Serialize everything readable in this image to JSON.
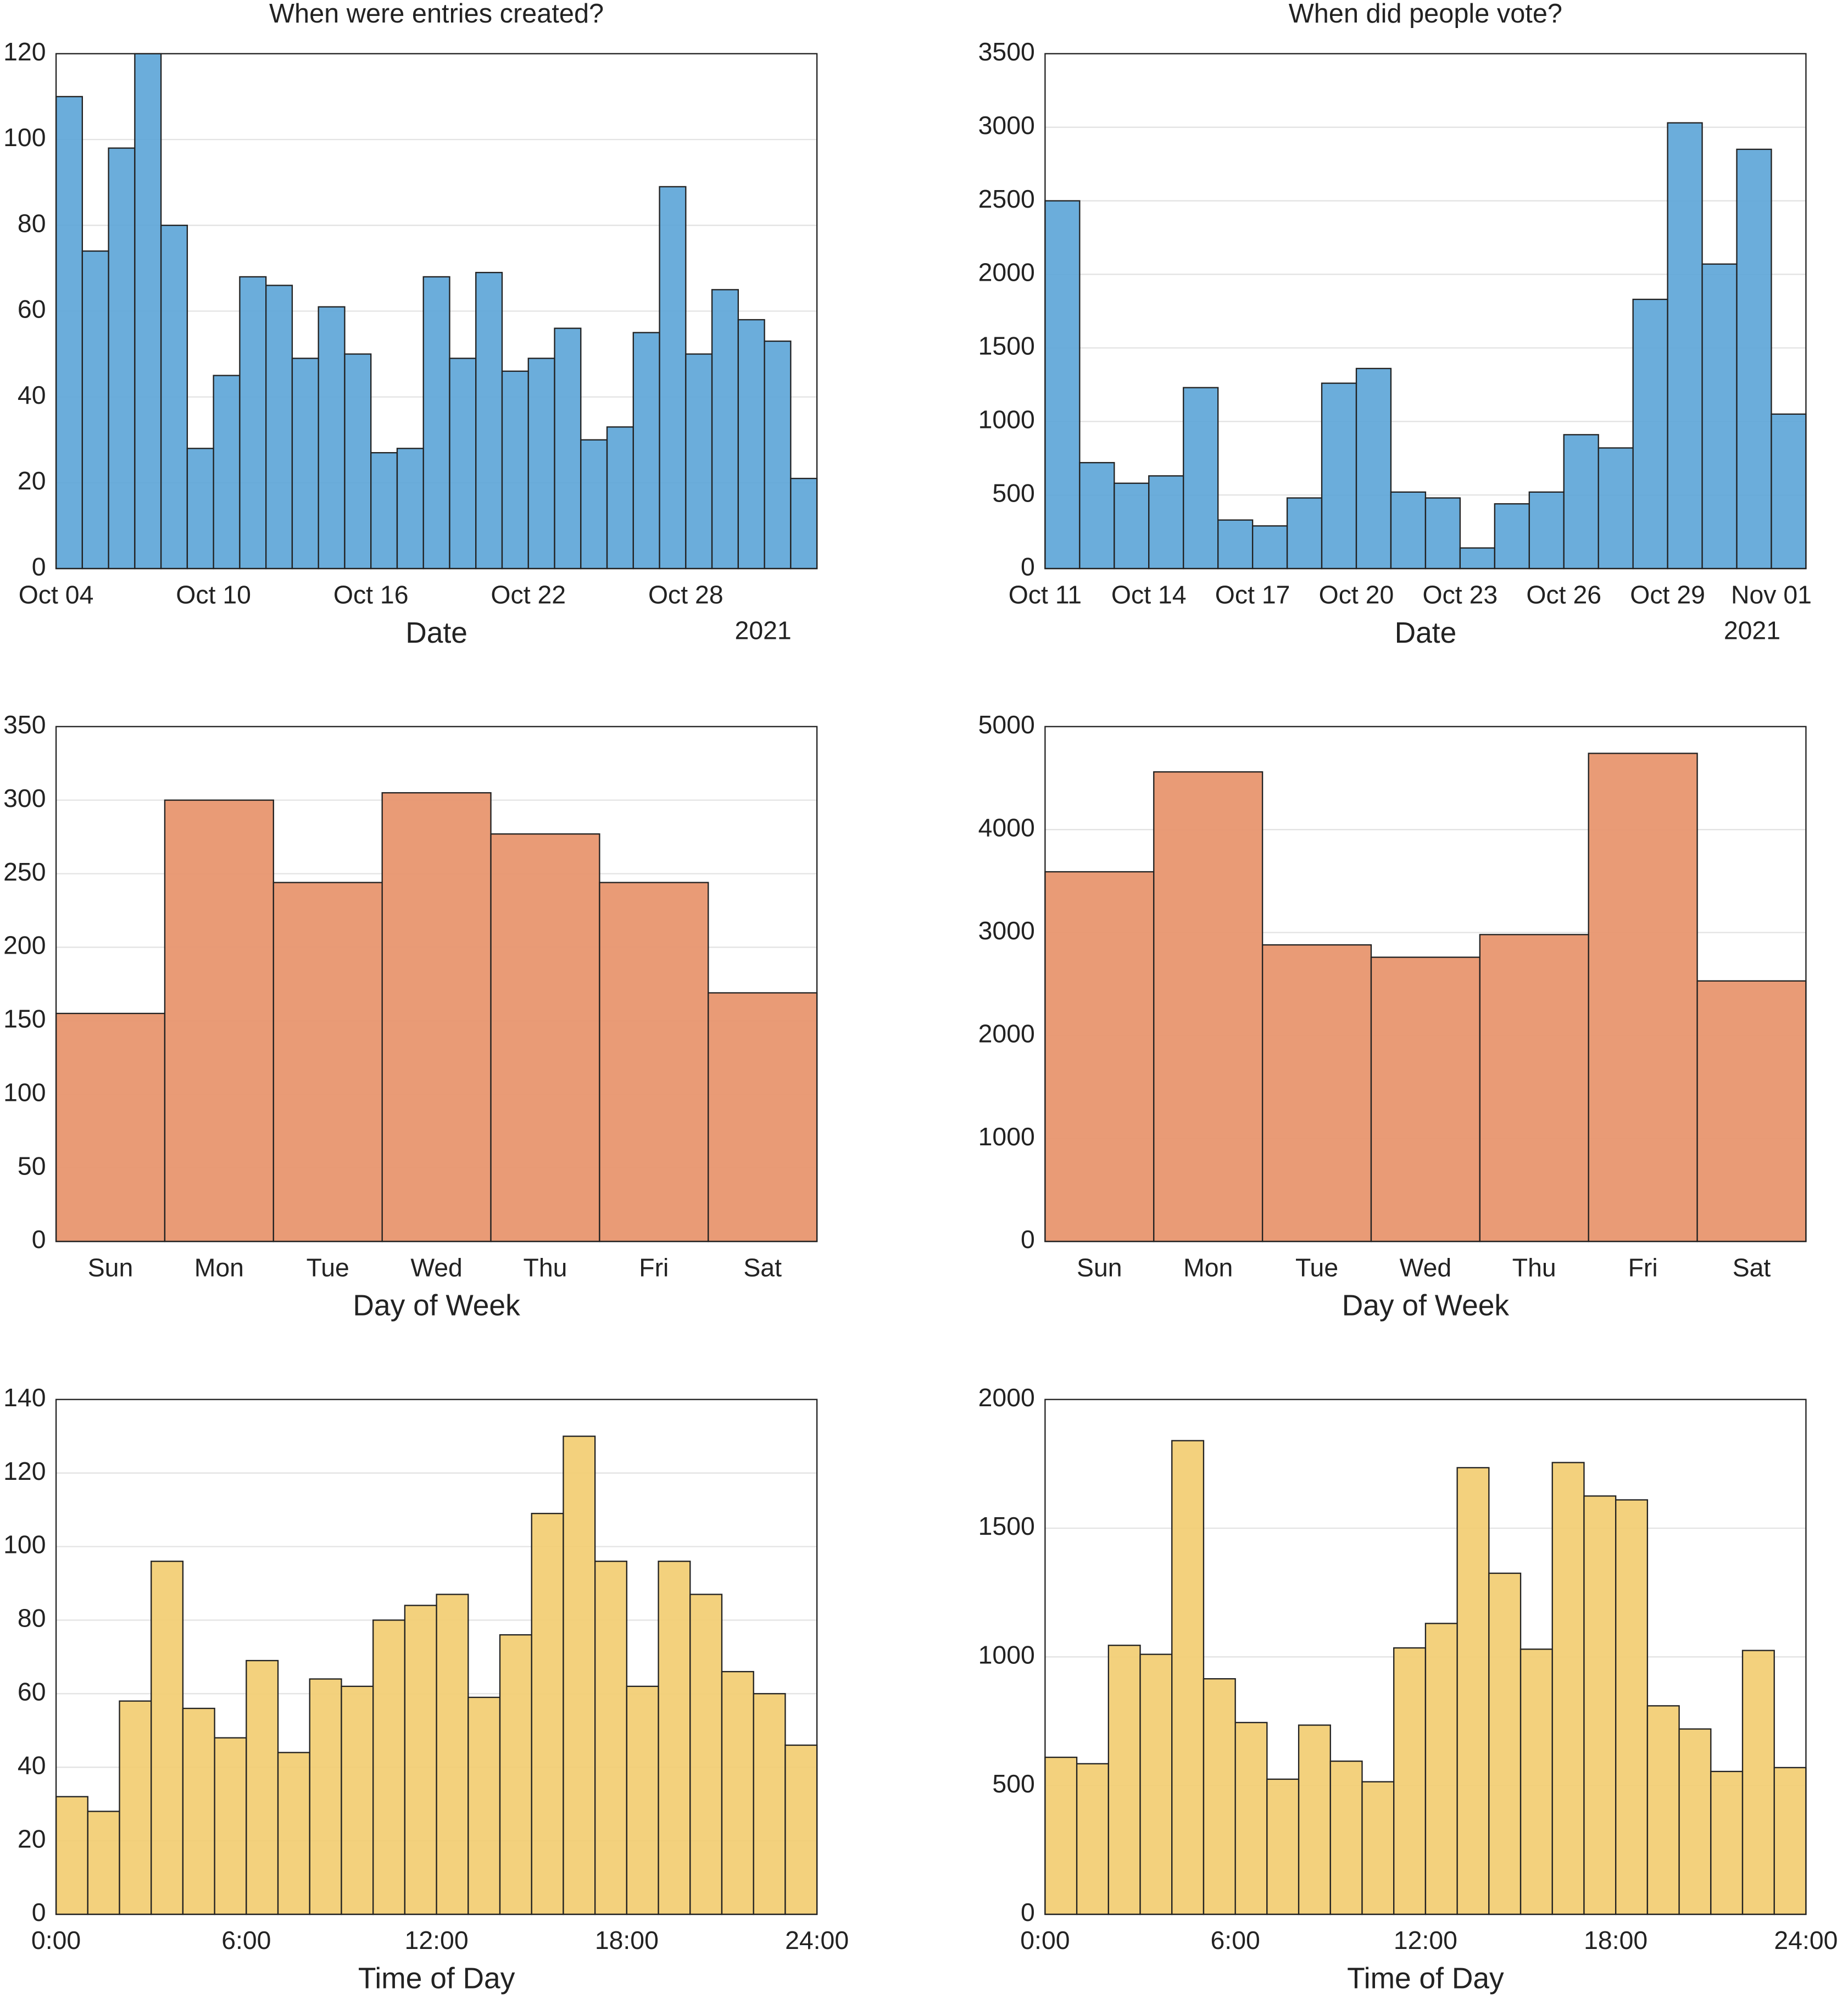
{
  "chart_data": [
    {
      "type": "histogram",
      "title": "When were entries created?",
      "xlabel": "Date",
      "x_offset_label": "2021",
      "color": "#5ea6d8",
      "grid": true,
      "bins": [
        "2021-10-04",
        "2021-10-05",
        "2021-10-06",
        "2021-10-07",
        "2021-10-08",
        "2021-10-09",
        "2021-10-10",
        "2021-10-11",
        "2021-10-12",
        "2021-10-13",
        "2021-10-14",
        "2021-10-15",
        "2021-10-16",
        "2021-10-17",
        "2021-10-18",
        "2021-10-19",
        "2021-10-20",
        "2021-10-21",
        "2021-10-22",
        "2021-10-23",
        "2021-10-24",
        "2021-10-25",
        "2021-10-26",
        "2021-10-27",
        "2021-10-28",
        "2021-10-29",
        "2021-10-30",
        "2021-10-31",
        "2021-11-01",
        "2021-11-02"
      ],
      "values": [
        110,
        74,
        98,
        120,
        80,
        28,
        45,
        68,
        66,
        49,
        61,
        50,
        27,
        28,
        68,
        49,
        69,
        46,
        49,
        56,
        30,
        33,
        55,
        89,
        50,
        65,
        58,
        53,
        21
      ],
      "xlim": [
        "2021-10-04",
        "2021-11-02"
      ],
      "xticks": [
        {
          "value": "2021-10-04",
          "label": "Oct 04"
        },
        {
          "value": "2021-10-10",
          "label": "Oct 10"
        },
        {
          "value": "2021-10-16",
          "label": "Oct 16"
        },
        {
          "value": "2021-10-22",
          "label": "Oct 22"
        },
        {
          "value": "2021-10-28",
          "label": "Oct 28"
        }
      ],
      "ylim": [
        0,
        120
      ],
      "yticks": [
        0,
        20,
        40,
        60,
        80,
        100,
        120
      ]
    },
    {
      "type": "histogram",
      "title": "When did people vote?",
      "xlabel": "Date",
      "x_offset_label": "2021",
      "color": "#5ea6d8",
      "grid": true,
      "bins": [
        "2021-10-11",
        "2021-10-12",
        "2021-10-13",
        "2021-10-14",
        "2021-10-15",
        "2021-10-16",
        "2021-10-17",
        "2021-10-18",
        "2021-10-19",
        "2021-10-20",
        "2021-10-21",
        "2021-10-22",
        "2021-10-23",
        "2021-10-24",
        "2021-10-25",
        "2021-10-26",
        "2021-10-27",
        "2021-10-28",
        "2021-10-29",
        "2021-10-30",
        "2021-10-31",
        "2021-11-01",
        "2021-11-02"
      ],
      "values": [
        2500,
        720,
        580,
        630,
        1230,
        330,
        290,
        480,
        1260,
        1360,
        520,
        480,
        140,
        440,
        520,
        910,
        820,
        1830,
        3030,
        2070,
        2850,
        1050
      ],
      "xlim": [
        "2021-10-11",
        "2021-11-02"
      ],
      "xticks": [
        {
          "value": "2021-10-11",
          "label": "Oct 11"
        },
        {
          "value": "2021-10-14",
          "label": "Oct 14"
        },
        {
          "value": "2021-10-17",
          "label": "Oct 17"
        },
        {
          "value": "2021-10-20",
          "label": "Oct 20"
        },
        {
          "value": "2021-10-23",
          "label": "Oct 23"
        },
        {
          "value": "2021-10-26",
          "label": "Oct 26"
        },
        {
          "value": "2021-10-29",
          "label": "Oct 29"
        },
        {
          "value": "2021-11-01",
          "label": "Nov 01"
        }
      ],
      "ylim": [
        0,
        3500
      ],
      "yticks": [
        0,
        500,
        1000,
        1500,
        2000,
        2500,
        3000,
        3500
      ]
    },
    {
      "type": "bar",
      "xlabel": "Day of Week",
      "color": "#e8966f",
      "grid": true,
      "categories": [
        "Sun",
        "Mon",
        "Tue",
        "Wed",
        "Thu",
        "Fri",
        "Sat"
      ],
      "values": [
        155,
        300,
        244,
        305,
        277,
        244,
        169
      ],
      "ylim": [
        0,
        350
      ],
      "yticks": [
        0,
        50,
        100,
        150,
        200,
        250,
        300,
        350
      ]
    },
    {
      "type": "bar",
      "xlabel": "Day of Week",
      "color": "#e8966f",
      "grid": true,
      "categories": [
        "Sun",
        "Mon",
        "Tue",
        "Wed",
        "Thu",
        "Fri",
        "Sat"
      ],
      "values": [
        3590,
        4560,
        2880,
        2760,
        2980,
        4740,
        2530
      ],
      "ylim": [
        0,
        5000
      ],
      "yticks": [
        0,
        1000,
        2000,
        3000,
        4000,
        5000
      ]
    },
    {
      "type": "histogram",
      "xlabel": "Time of Day",
      "color": "#f2cd72",
      "grid": true,
      "bins": [
        0,
        1,
        2,
        3,
        4,
        5,
        6,
        7,
        8,
        9,
        10,
        11,
        12,
        13,
        14,
        15,
        16,
        17,
        18,
        19,
        20,
        21,
        22,
        23,
        24
      ],
      "values": [
        32,
        28,
        58,
        96,
        56,
        48,
        69,
        44,
        64,
        62,
        80,
        84,
        87,
        59,
        76,
        109,
        130,
        96,
        62,
        96,
        87,
        66,
        60,
        46
      ],
      "xlim": [
        0,
        24
      ],
      "xticks": [
        {
          "value": 0,
          "label": "0:00"
        },
        {
          "value": 6,
          "label": "6:00"
        },
        {
          "value": 12,
          "label": "12:00"
        },
        {
          "value": 18,
          "label": "18:00"
        },
        {
          "value": 24,
          "label": "24:00"
        }
      ],
      "ylim": [
        0,
        140
      ],
      "yticks": [
        0,
        20,
        40,
        60,
        80,
        100,
        120,
        140
      ]
    },
    {
      "type": "histogram",
      "xlabel": "Time of Day",
      "color": "#f2cd72",
      "grid": true,
      "bins": [
        0,
        1,
        2,
        3,
        4,
        5,
        6,
        7,
        8,
        9,
        10,
        11,
        12,
        13,
        14,
        15,
        16,
        17,
        18,
        19,
        20,
        21,
        22,
        23,
        24
      ],
      "values": [
        610,
        585,
        1045,
        1010,
        1840,
        915,
        745,
        525,
        735,
        595,
        515,
        1035,
        1130,
        1735,
        1325,
        1030,
        1755,
        1625,
        1610,
        810,
        720,
        555,
        1025,
        570
      ],
      "xlim": [
        0,
        24
      ],
      "xticks": [
        {
          "value": 0,
          "label": "0:00"
        },
        {
          "value": 6,
          "label": "6:00"
        },
        {
          "value": 12,
          "label": "12:00"
        },
        {
          "value": 18,
          "label": "18:00"
        },
        {
          "value": 24,
          "label": "24:00"
        }
      ],
      "ylim": [
        0,
        2000
      ],
      "yticks": [
        0,
        500,
        1000,
        1500,
        2000
      ]
    }
  ]
}
